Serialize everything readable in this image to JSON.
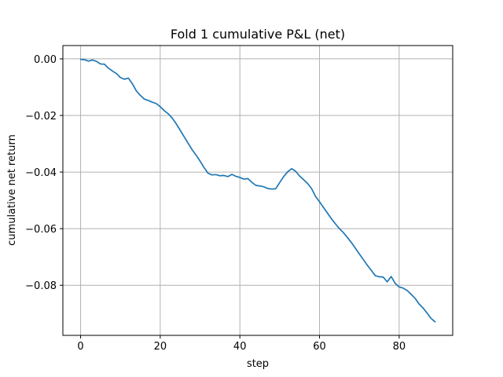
{
  "chart_data": {
    "type": "line",
    "title": "Fold 1 cumulative P&L (net)",
    "xlabel": "step",
    "ylabel": "cumulative net return",
    "xlim": [
      -4.45,
      93.45
    ],
    "ylim": [
      -0.0977,
      0.0047
    ],
    "xticks": [
      0,
      20,
      40,
      60,
      80
    ],
    "xtick_labels": [
      "0",
      "20",
      "40",
      "60",
      "80"
    ],
    "yticks": [
      0.0,
      -0.02,
      -0.04,
      -0.06,
      -0.08
    ],
    "ytick_labels": [
      "0.00",
      "−0.02",
      "−0.04",
      "−0.06",
      "−0.08"
    ],
    "grid": true,
    "line_color": "#1f77b4",
    "series": [
      {
        "x": [
          0,
          1,
          2,
          3,
          4,
          5,
          6,
          7,
          8,
          9,
          10,
          11,
          12,
          13,
          14,
          15,
          16,
          17,
          18,
          19,
          20,
          21,
          22,
          23,
          24,
          25,
          26,
          27,
          28,
          29,
          30,
          31,
          32,
          33,
          34,
          35,
          36,
          37,
          38,
          39,
          40,
          41,
          42,
          43,
          44,
          45,
          46,
          47,
          48,
          49,
          50,
          51,
          52,
          53,
          54,
          55,
          56,
          57,
          58,
          59,
          60,
          61,
          62,
          63,
          64,
          65,
          66,
          67,
          68,
          69,
          70,
          71,
          72,
          73,
          74,
          75,
          76,
          77,
          78,
          79,
          80,
          81,
          82,
          83,
          84,
          85,
          86,
          87,
          88,
          89
        ],
        "values": [
          -0.0002,
          -0.0003,
          -0.0008,
          -0.0004,
          -0.0009,
          -0.0018,
          -0.0019,
          -0.0033,
          -0.0043,
          -0.0052,
          -0.0066,
          -0.0072,
          -0.0068,
          -0.0088,
          -0.0113,
          -0.0129,
          -0.0142,
          -0.0147,
          -0.0153,
          -0.0158,
          -0.0169,
          -0.0183,
          -0.0194,
          -0.0209,
          -0.0229,
          -0.0252,
          -0.0275,
          -0.0298,
          -0.0321,
          -0.034,
          -0.0361,
          -0.0384,
          -0.0404,
          -0.041,
          -0.0409,
          -0.0413,
          -0.0412,
          -0.0416,
          -0.0408,
          -0.0415,
          -0.0419,
          -0.0425,
          -0.0423,
          -0.0436,
          -0.0447,
          -0.0449,
          -0.0452,
          -0.0458,
          -0.046,
          -0.0459,
          -0.0437,
          -0.0416,
          -0.0399,
          -0.0388,
          -0.0397,
          -0.0414,
          -0.0427,
          -0.044,
          -0.0458,
          -0.0486,
          -0.0505,
          -0.0525,
          -0.0545,
          -0.0565,
          -0.0583,
          -0.06,
          -0.0614,
          -0.0631,
          -0.0649,
          -0.0669,
          -0.0689,
          -0.0709,
          -0.0729,
          -0.0747,
          -0.0766,
          -0.077,
          -0.0771,
          -0.0788,
          -0.0769,
          -0.0793,
          -0.0806,
          -0.081,
          -0.0818,
          -0.0832,
          -0.0846,
          -0.0866,
          -0.088,
          -0.0898,
          -0.0917,
          -0.0929
        ]
      }
    ]
  }
}
